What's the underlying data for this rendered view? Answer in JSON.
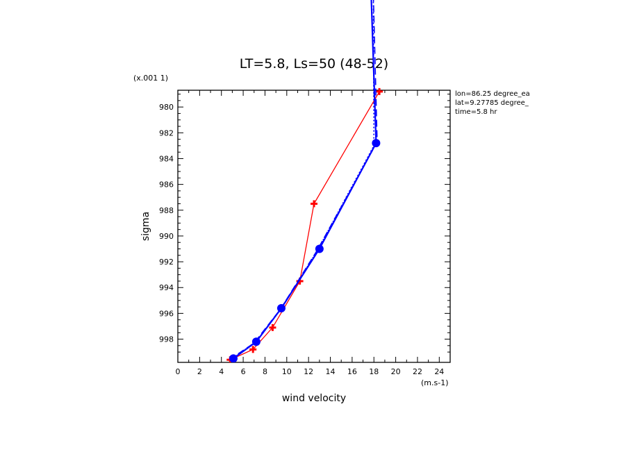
{
  "chart_data": {
    "type": "line",
    "title": "LT=5.8, Ls=50 (48-52)",
    "xlabel": "wind velocity",
    "ylabel": "sigma",
    "x_unit": "(m.s-1)",
    "y_scale_label": "(x.001 1)",
    "xlim": [
      0,
      25
    ],
    "ylim": [
      999.8,
      978.7
    ],
    "xticks": [
      "0",
      "2",
      "4",
      "6",
      "8",
      "10",
      "12",
      "14",
      "16",
      "18",
      "20",
      "22",
      "24"
    ],
    "yticks": [
      "980",
      "982",
      "984",
      "986",
      "988",
      "990",
      "992",
      "994",
      "996",
      "998"
    ],
    "annotations": [
      "lon=86.25 degree_ea",
      "lat=9.27785 degree_",
      "time=5.8 hr"
    ],
    "series": [
      {
        "color": "#ff0000",
        "style": "solid",
        "marker": "plus",
        "x": [
          18.5,
          12.5,
          11.2,
          8.7,
          6.9,
          4.8
        ],
        "y": [
          978.8,
          987.5,
          993.5,
          997.1,
          998.8,
          999.6
        ]
      },
      {
        "color": "#0000ff",
        "style": "solid",
        "marker": "circle",
        "x": [
          17.3,
          18.2,
          13.0,
          9.5,
          7.2,
          5.1
        ],
        "y": [
          960.0,
          982.8,
          991.0,
          995.6,
          998.2,
          999.5
        ]
      },
      {
        "color": "#0000ff",
        "style": "dashed",
        "marker": "none",
        "x": [
          17.6,
          18.3,
          12.8,
          9.4,
          7.0,
          4.9
        ],
        "y": [
          960.0,
          982.7,
          991.1,
          995.7,
          998.3,
          999.5
        ]
      },
      {
        "color": "#0000ff",
        "style": "dotted",
        "marker": "none",
        "x": [
          17.9,
          18.0,
          12.9,
          9.6,
          7.3,
          5.2
        ],
        "y": [
          960.0,
          983.0,
          991.0,
          995.5,
          998.1,
          999.4
        ]
      }
    ]
  }
}
